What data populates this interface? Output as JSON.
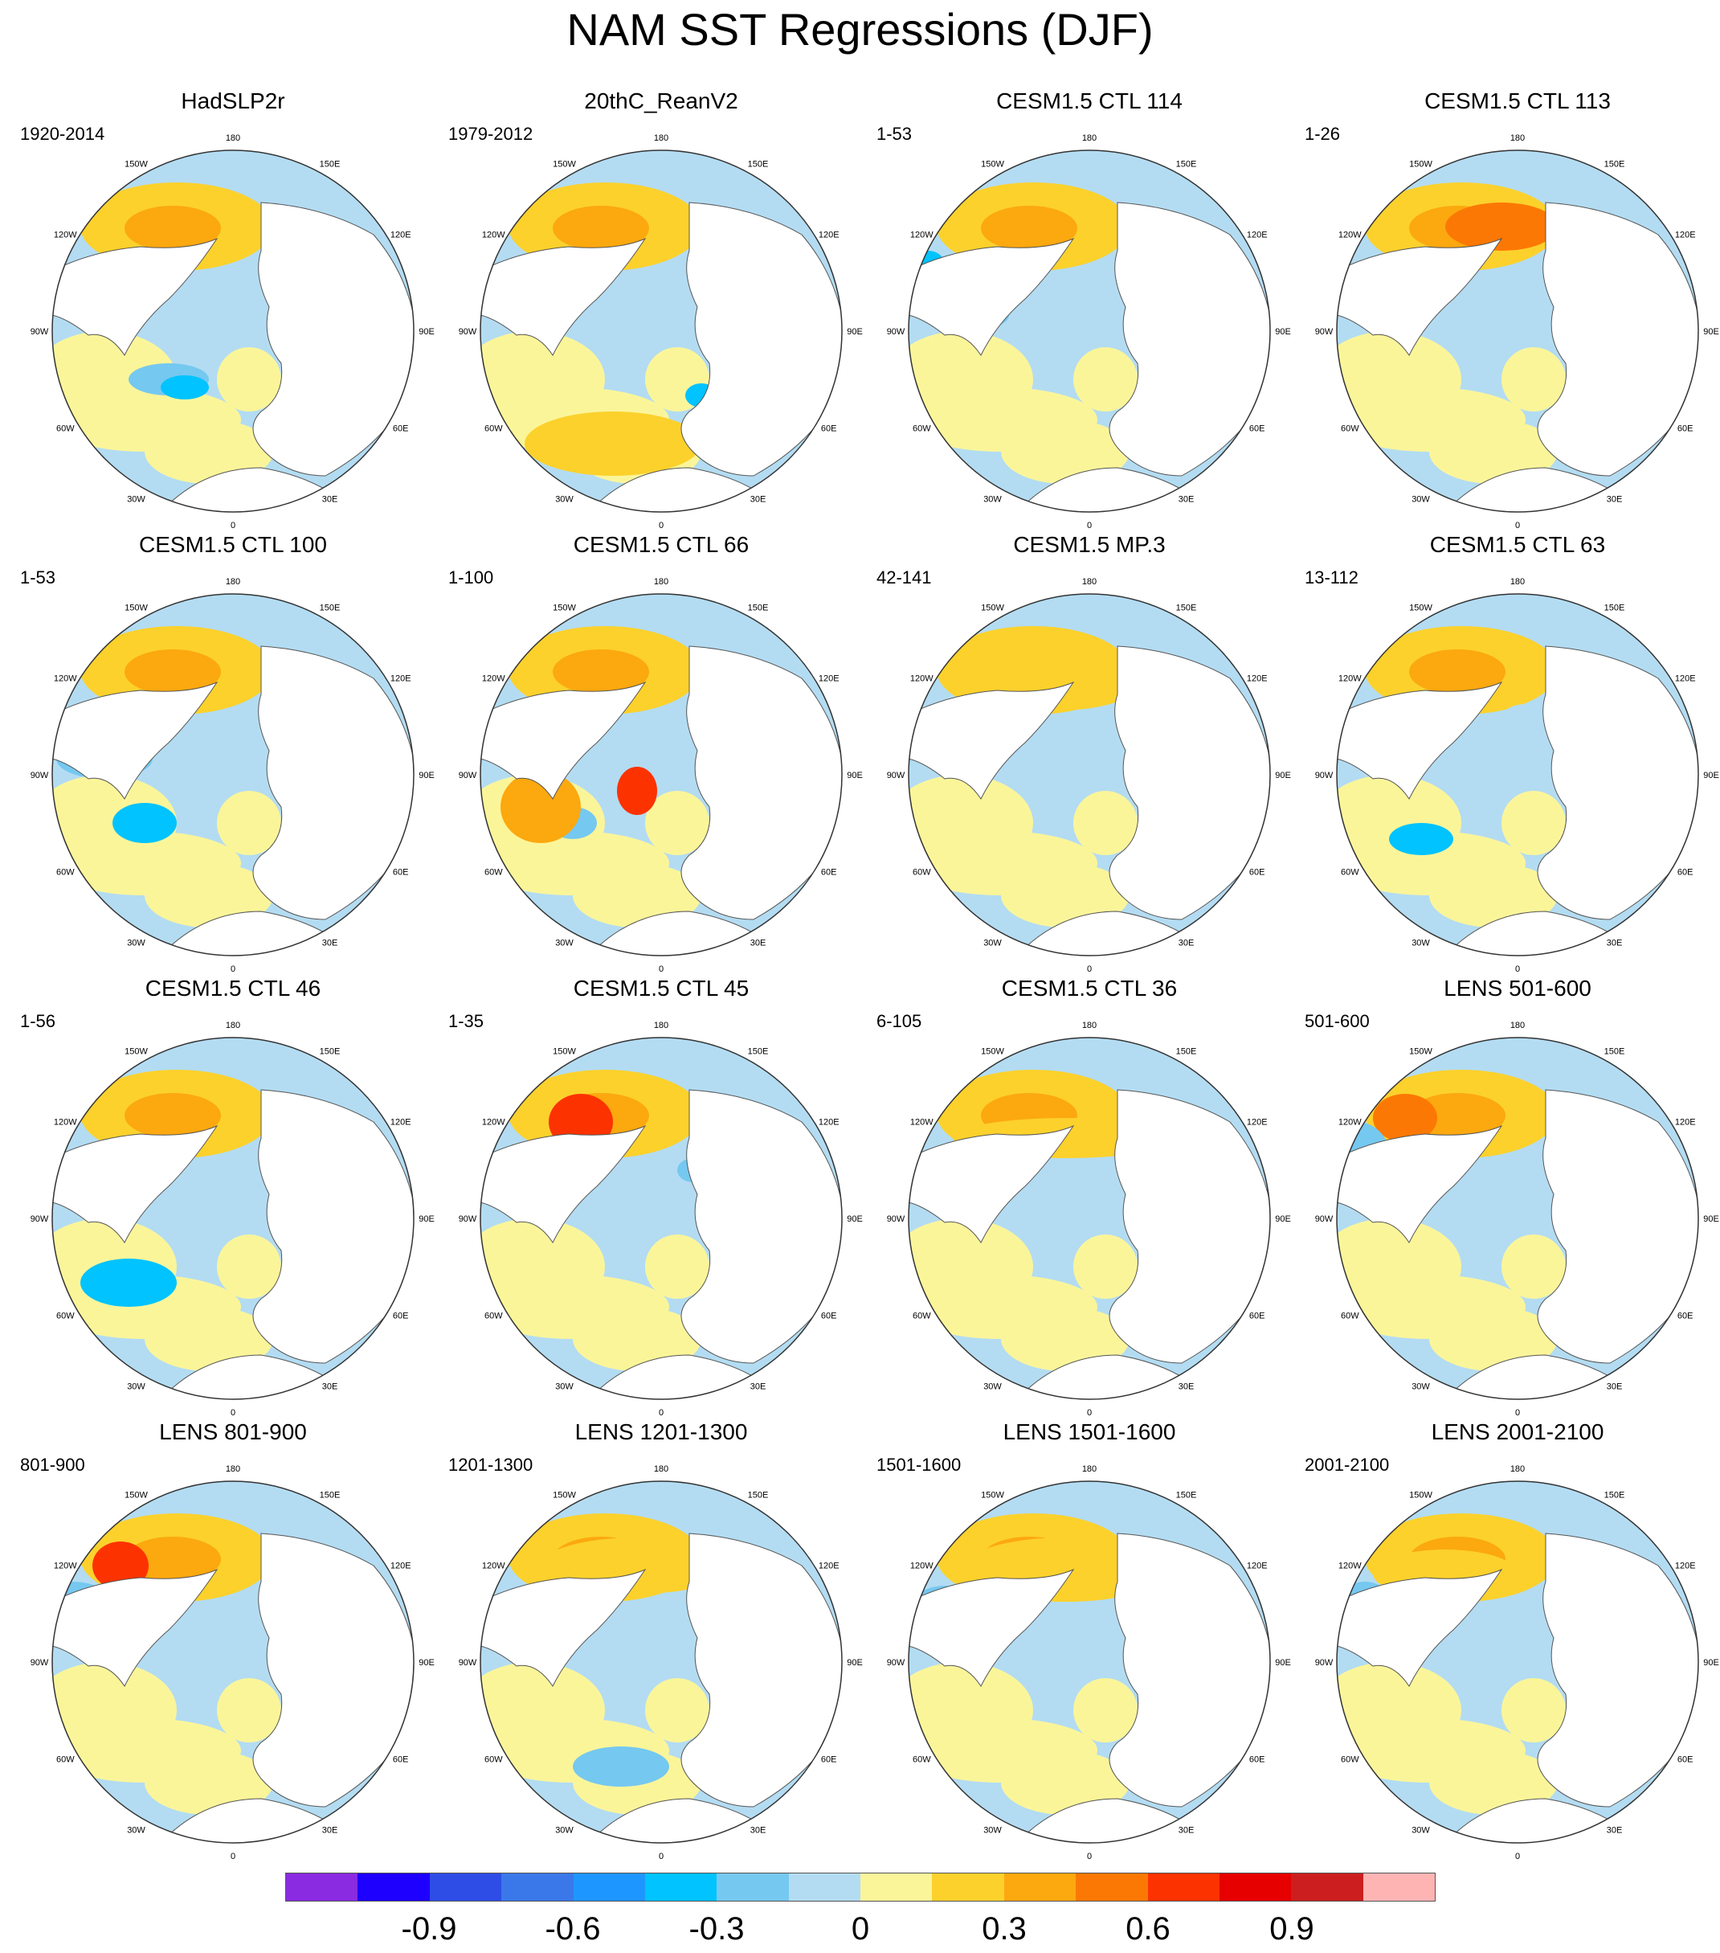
{
  "title": "NAM SST Regressions (DJF)",
  "longitude_labels": [
    "180",
    "150E",
    "120E",
    "90E",
    "60E",
    "30E",
    "0",
    "30W",
    "60W",
    "90W",
    "120W",
    "150W"
  ],
  "panels": [
    {
      "name": "HadSLP2r",
      "period": "1920-2014"
    },
    {
      "name": "20thC_ReanV2",
      "period": "1979-2012"
    },
    {
      "name": "CESM1.5 CTL 114",
      "period": "1-53"
    },
    {
      "name": "CESM1.5 CTL 113",
      "period": "1-26"
    },
    {
      "name": "CESM1.5 CTL 100",
      "period": "1-53"
    },
    {
      "name": "CESM1.5 CTL 66",
      "period": "1-100"
    },
    {
      "name": "CESM1.5 MP.3",
      "period": "42-141"
    },
    {
      "name": "CESM1.5 CTL 63",
      "period": "13-112"
    },
    {
      "name": "CESM1.5 CTL 46",
      "period": "1-56"
    },
    {
      "name": "CESM1.5 CTL 45",
      "period": "1-35"
    },
    {
      "name": "CESM1.5 CTL 36",
      "period": "6-105"
    },
    {
      "name": "LENS 501-600",
      "period": "501-600"
    },
    {
      "name": "LENS 801-900",
      "period": "801-900"
    },
    {
      "name": "LENS 1201-1300",
      "period": "1201-1300"
    },
    {
      "name": "LENS 1501-1600",
      "period": "1501-1600"
    },
    {
      "name": "LENS 2001-2100",
      "period": "2001-2100"
    }
  ],
  "colorbar": {
    "colors": [
      "#8a2be2",
      "#1e00ff",
      "#2e4de6",
      "#3a78ea",
      "#1e96ff",
      "#00c3ff",
      "#75c8f0",
      "#b3dcf2",
      "#fbf59a",
      "#fcd12c",
      "#fca80f",
      "#fc7804",
      "#fc3200",
      "#e60000",
      "#cc1e1e",
      "#ffb4b4"
    ],
    "tick_labels": [
      "-0.9",
      "-0.6",
      "-0.3",
      "0",
      "0.3",
      "0.6",
      "0.9"
    ]
  }
}
